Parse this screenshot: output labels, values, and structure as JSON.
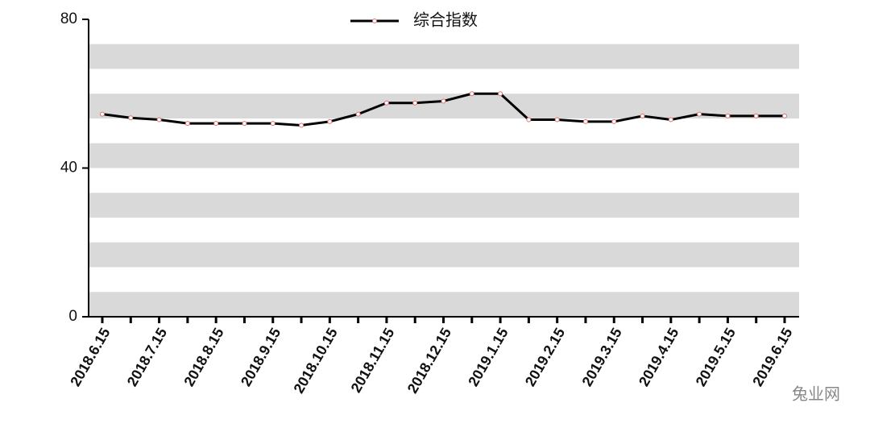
{
  "chart_data": {
    "type": "line",
    "categories": [
      "2018.6.15",
      null,
      "2018.7.15",
      null,
      "2018.8.15",
      null,
      "2018.9.15",
      null,
      "2018.10.15",
      null,
      "2018.11.15",
      null,
      "2018.12.15",
      null,
      "2019.1.15",
      null,
      "2019.2.15",
      null,
      "2019.3.15",
      null,
      "2019.4.15",
      null,
      "2019.5.15",
      null,
      "2019.6.15"
    ],
    "series": [
      {
        "name": "综合指数",
        "color": "#000000",
        "values": [
          54.5,
          53.5,
          53,
          52,
          52,
          52,
          52,
          51.5,
          52.5,
          54.5,
          57.5,
          57.5,
          58,
          60,
          60,
          53,
          53,
          52.5,
          52.5,
          54,
          53,
          54.5,
          54,
          54,
          54
        ]
      }
    ],
    "ylim": [
      0,
      80
    ],
    "yticks": [
      0,
      40,
      80
    ],
    "legend": "top",
    "watermark": "兔业网"
  }
}
